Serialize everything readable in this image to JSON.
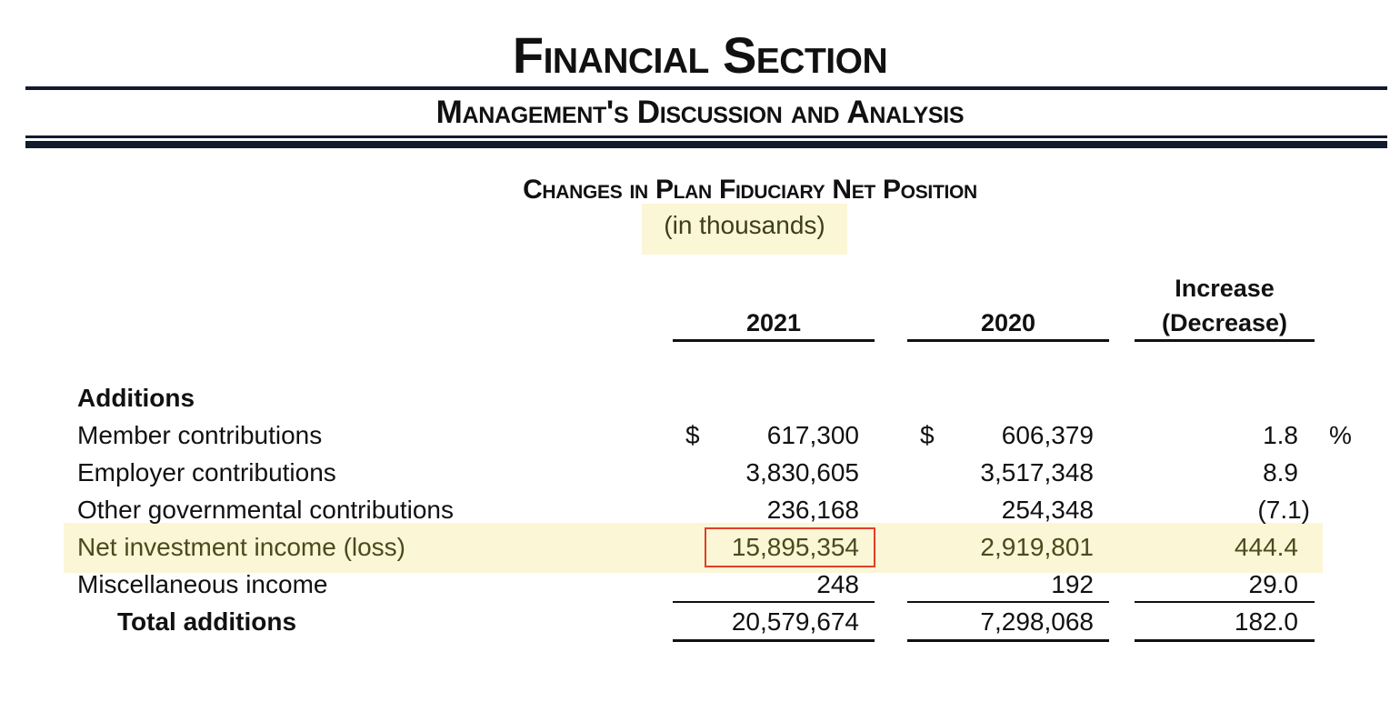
{
  "header": {
    "title": "Financial Section",
    "subtitle": "Management's Discussion and Analysis"
  },
  "table": {
    "title": "Changes in Plan Fiduciary Net Position",
    "units": "(in thousands)",
    "columns": {
      "y2021": "2021",
      "y2020": "2020",
      "change_line1": "Increase",
      "change_line2": "(Decrease)"
    },
    "section_label": "Additions",
    "currency_symbol": "$",
    "percent_symbol": "%",
    "rows": [
      {
        "label": "Member contributions",
        "v2021": "617,300",
        "v2020": "606,379",
        "change": "1.8"
      },
      {
        "label": "Employer contributions",
        "v2021": "3,830,605",
        "v2020": "3,517,348",
        "change": "8.9"
      },
      {
        "label": "Other governmental contributions",
        "v2021": "236,168",
        "v2020": "254,348",
        "change": "(7.1)"
      },
      {
        "label": "Net investment income (loss)",
        "v2021": "15,895,354",
        "v2020": "2,919,801",
        "change": "444.4"
      },
      {
        "label": "Miscellaneous income",
        "v2021": "248",
        "v2020": "192",
        "change": "29.0"
      }
    ],
    "total": {
      "label": "Total additions",
      "v2021": "20,579,674",
      "v2020": "7,298,068",
      "change": "182.0"
    }
  }
}
